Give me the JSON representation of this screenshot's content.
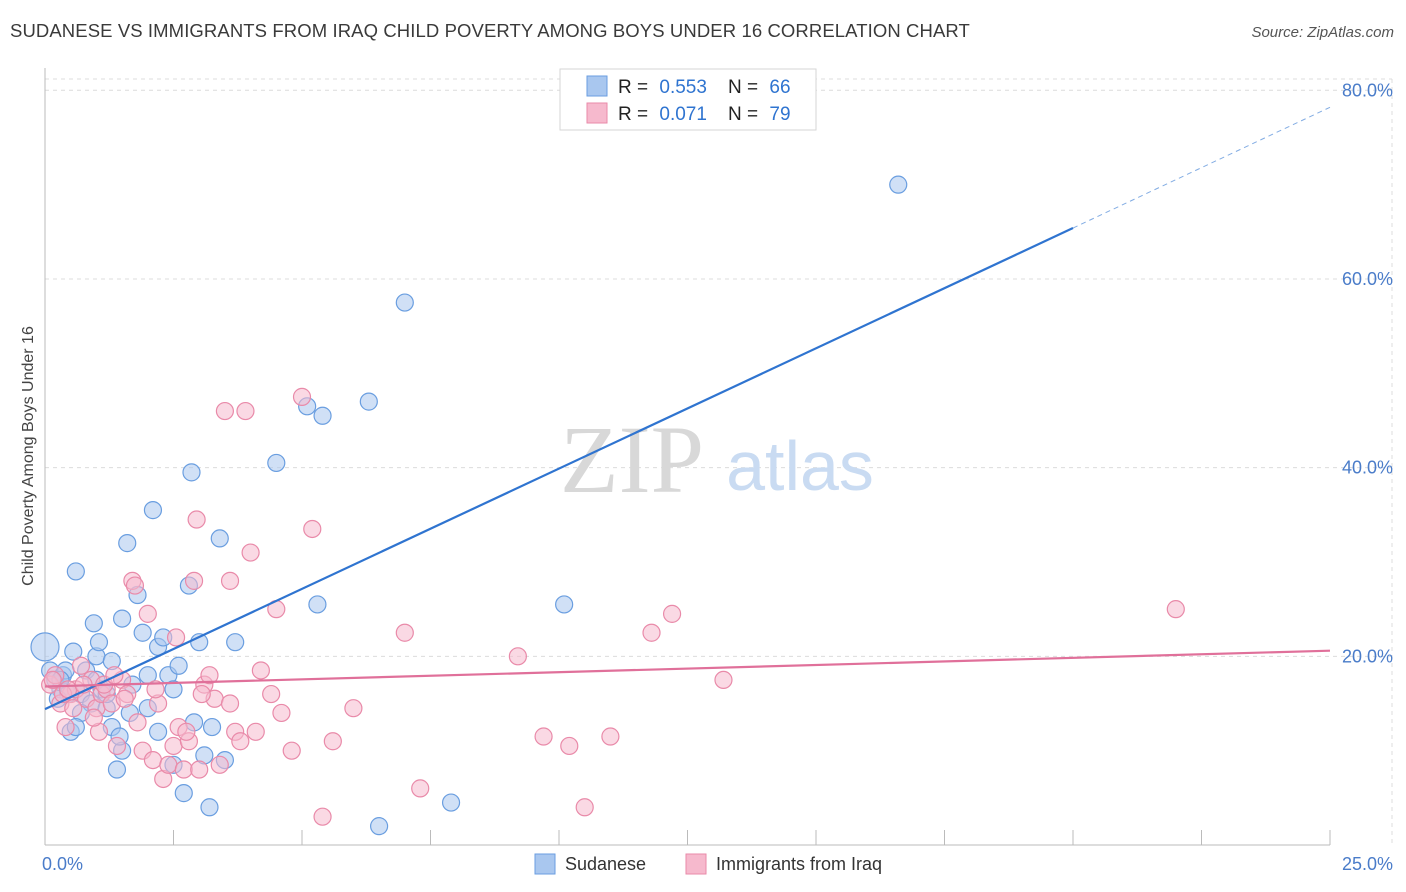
{
  "title": "SUDANESE VS IMMIGRANTS FROM IRAQ CHILD POVERTY AMONG BOYS UNDER 16 CORRELATION CHART",
  "source": "Source: ZipAtlas.com",
  "watermark": {
    "zip": "ZIP",
    "atlas": "atlas"
  },
  "colors": {
    "blue_fill": "#a9c7ef",
    "blue_stroke": "#6a9ee0",
    "blue_line": "#2f74d0",
    "pink_fill": "#f6b9cd",
    "pink_stroke": "#e98aa9",
    "pink_line": "#e0709a",
    "axis_text": "#4a7cc9",
    "grid": "#dcdcdc"
  },
  "legend_top": {
    "rows": [
      {
        "r_label": "R =",
        "r_value": "0.553",
        "n_label": "N =",
        "n_value": "66"
      },
      {
        "r_label": "R =",
        "r_value": "0.071",
        "n_label": "N =",
        "n_value": "79"
      }
    ]
  },
  "legend_bottom": [
    "Sudanese",
    "Immigrants from Iraq"
  ],
  "chart_data": {
    "type": "scatter",
    "xlabel": "",
    "ylabel": "Child Poverty Among Boys Under 16",
    "xlim": [
      0,
      25
    ],
    "ylim": [
      0,
      83
    ],
    "x_tick_labels": [
      "0.0%",
      "25.0%"
    ],
    "y_ticks": [
      20,
      40,
      60,
      80
    ],
    "y_tick_labels": [
      "20.0%",
      "40.0%",
      "60.0%",
      "80.0%"
    ],
    "grid": true,
    "series": [
      {
        "name": "Sudanese",
        "trend": {
          "x0": 0,
          "y0": 14.4,
          "x1": 20,
          "y1": 65.4,
          "dashed_to": 25,
          "dashed_y": 78.2
        },
        "points": [
          [
            0.1,
            18.5
          ],
          [
            0.2,
            17.5
          ],
          [
            0.3,
            16.5
          ],
          [
            0.35,
            18.0
          ],
          [
            0.4,
            18.5
          ],
          [
            0.5,
            12.0
          ],
          [
            0.55,
            20.5
          ],
          [
            0.6,
            29.0
          ],
          [
            0.7,
            16.0
          ],
          [
            0.8,
            18.5
          ],
          [
            0.9,
            15.0
          ],
          [
            0.95,
            23.5
          ],
          [
            1.0,
            20.0
          ],
          [
            1.05,
            21.5
          ],
          [
            1.1,
            16.5
          ],
          [
            1.2,
            14.5
          ],
          [
            1.3,
            12.5
          ],
          [
            1.3,
            19.5
          ],
          [
            1.4,
            8.0
          ],
          [
            1.5,
            24.0
          ],
          [
            1.5,
            10.0
          ],
          [
            1.6,
            32.0
          ],
          [
            1.7,
            17.0
          ],
          [
            1.8,
            26.5
          ],
          [
            1.9,
            22.5
          ],
          [
            2.0,
            18.0
          ],
          [
            2.1,
            35.5
          ],
          [
            2.2,
            21.0
          ],
          [
            2.2,
            12.0
          ],
          [
            2.3,
            22.0
          ],
          [
            2.4,
            18.0
          ],
          [
            2.5,
            8.5
          ],
          [
            2.5,
            16.5
          ],
          [
            2.6,
            19.0
          ],
          [
            2.7,
            5.5
          ],
          [
            2.8,
            27.5
          ],
          [
            2.85,
            39.5
          ],
          [
            2.9,
            13.0
          ],
          [
            3.0,
            21.5
          ],
          [
            3.1,
            9.5
          ],
          [
            3.2,
            4.0
          ],
          [
            3.25,
            12.5
          ],
          [
            3.4,
            32.5
          ],
          [
            3.5,
            9.0
          ],
          [
            3.7,
            21.5
          ],
          [
            4.5,
            40.5
          ],
          [
            5.1,
            46.5
          ],
          [
            5.3,
            25.5
          ],
          [
            5.4,
            45.5
          ],
          [
            6.3,
            47.0
          ],
          [
            6.5,
            2.0
          ],
          [
            7.0,
            57.5
          ],
          [
            7.9,
            4.5
          ],
          [
            10.1,
            25.5
          ],
          [
            16.6,
            70.0
          ],
          [
            1.2,
            16.0
          ],
          [
            0.7,
            14.0
          ],
          [
            1.65,
            14.0
          ],
          [
            0.45,
            16.0
          ],
          [
            0.25,
            15.5
          ],
          [
            1.0,
            17.5
          ],
          [
            2.0,
            14.5
          ],
          [
            1.45,
            11.5
          ],
          [
            0.6,
            12.5
          ],
          [
            0.3,
            17.5
          ],
          [
            0.0,
            21.0
          ]
        ]
      },
      {
        "name": "Immigrants from Iraq",
        "trend": {
          "x0": 0,
          "y0": 16.8,
          "x1": 25,
          "y1": 20.6
        },
        "points": [
          [
            0.1,
            17.0
          ],
          [
            0.2,
            18.0
          ],
          [
            0.3,
            15.0
          ],
          [
            0.4,
            12.5
          ],
          [
            0.5,
            16.0
          ],
          [
            0.6,
            16.5
          ],
          [
            0.7,
            19.0
          ],
          [
            0.8,
            15.5
          ],
          [
            0.9,
            17.5
          ],
          [
            1.0,
            14.5
          ],
          [
            1.05,
            12.0
          ],
          [
            1.1,
            16.0
          ],
          [
            1.2,
            16.5
          ],
          [
            1.3,
            15.0
          ],
          [
            1.4,
            10.5
          ],
          [
            1.5,
            17.5
          ],
          [
            1.6,
            16.0
          ],
          [
            1.7,
            28.0
          ],
          [
            1.8,
            13.0
          ],
          [
            1.9,
            10.0
          ],
          [
            2.0,
            24.5
          ],
          [
            2.1,
            9.0
          ],
          [
            2.2,
            15.0
          ],
          [
            2.3,
            7.0
          ],
          [
            2.4,
            8.5
          ],
          [
            2.5,
            10.5
          ],
          [
            2.55,
            22.0
          ],
          [
            2.6,
            12.5
          ],
          [
            2.7,
            8.0
          ],
          [
            2.8,
            11.0
          ],
          [
            2.9,
            28.0
          ],
          [
            2.95,
            34.5
          ],
          [
            3.0,
            8.0
          ],
          [
            3.1,
            17.0
          ],
          [
            3.2,
            18.0
          ],
          [
            3.3,
            15.5
          ],
          [
            3.4,
            8.5
          ],
          [
            3.5,
            46.0
          ],
          [
            3.6,
            28.0
          ],
          [
            3.6,
            15.0
          ],
          [
            3.7,
            12.0
          ],
          [
            3.8,
            11.0
          ],
          [
            3.9,
            46.0
          ],
          [
            4.0,
            31.0
          ],
          [
            4.2,
            18.5
          ],
          [
            4.4,
            16.0
          ],
          [
            4.5,
            25.0
          ],
          [
            4.6,
            14.0
          ],
          [
            4.8,
            10.0
          ],
          [
            5.0,
            47.5
          ],
          [
            5.2,
            33.5
          ],
          [
            5.4,
            3.0
          ],
          [
            5.6,
            11.0
          ],
          [
            6.0,
            14.5
          ],
          [
            7.0,
            22.5
          ],
          [
            7.3,
            6.0
          ],
          [
            9.2,
            20.0
          ],
          [
            9.7,
            11.5
          ],
          [
            10.5,
            4.0
          ],
          [
            11.0,
            11.5
          ],
          [
            11.8,
            22.5
          ],
          [
            12.2,
            24.5
          ],
          [
            13.2,
            17.5
          ],
          [
            22.0,
            25.0
          ],
          [
            0.15,
            17.5
          ],
          [
            0.35,
            16.0
          ],
          [
            0.45,
            16.5
          ],
          [
            1.15,
            17.0
          ],
          [
            1.55,
            15.5
          ],
          [
            0.55,
            14.5
          ],
          [
            0.75,
            17.0
          ],
          [
            0.95,
            13.5
          ],
          [
            1.35,
            18.0
          ],
          [
            2.15,
            16.5
          ],
          [
            2.75,
            12.0
          ],
          [
            3.05,
            16.0
          ],
          [
            4.1,
            12.0
          ],
          [
            10.2,
            10.5
          ],
          [
            1.75,
            27.5
          ]
        ]
      }
    ]
  }
}
